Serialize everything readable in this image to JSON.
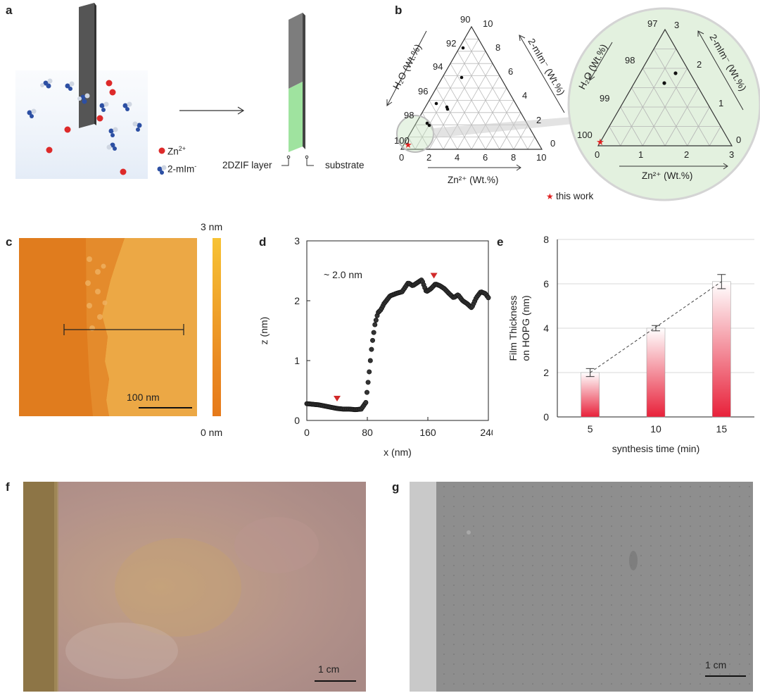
{
  "panels": {
    "a": "a",
    "b": "b",
    "c": "c",
    "d": "d",
    "e": "e",
    "f": "f",
    "g": "g"
  },
  "panel_a": {
    "legend_zn": "Zn",
    "legend_zn_sup": "2+",
    "legend_mim": "2-mIm",
    "legend_mim_sup": "-",
    "layer_label": "2DZIF layer",
    "substrate_label": "substrate",
    "colors": {
      "zn": "#dd2a2a",
      "mim_n": "#2c4fa3",
      "film": "#9fe39f",
      "plate": "#555555"
    }
  },
  "panel_b": {
    "left_axis_ticks": [
      "100",
      "98",
      "96",
      "94",
      "92",
      "90"
    ],
    "right_axis_ticks": [
      "2",
      "4",
      "6",
      "8",
      "10"
    ],
    "bottom_axis_ticks": [
      "0",
      "2",
      "4",
      "6",
      "8",
      "10"
    ],
    "right_corner_tick": "0",
    "left_axis_title": "H₂O (Wt.%)",
    "right_axis_title": "2-mIm⁻ (Wt.%)",
    "bottom_axis_title": "Zn²⁺ (Wt.%)",
    "zoom_left_ticks": [
      "100",
      "99",
      "98",
      "97"
    ],
    "zoom_right_ticks": [
      "1",
      "2",
      "3"
    ],
    "zoom_right_corner": "0",
    "zoom_bottom_ticks": [
      "0",
      "1",
      "2",
      "3"
    ],
    "legend": "this work"
  },
  "panel_c": {
    "colorbar_max": "3 nm",
    "colorbar_min": "0 nm",
    "scale_bar": "100 nm"
  },
  "panel_g_scale": "1 cm",
  "panel_f_scale": "1 cm",
  "chart_data": [
    {
      "type": "line",
      "panel": "d",
      "xlabel": "x (nm)",
      "ylabel": "z (nm)",
      "xlim": [
        0,
        240
      ],
      "ylim": [
        0,
        3
      ],
      "xticks": [
        "0",
        "80",
        "160",
        "240"
      ],
      "yticks": [
        "0",
        "1",
        "2",
        "3"
      ],
      "annotation": "~ 2.0 nm",
      "marker_positions_x": [
        40,
        168
      ],
      "x": [
        0,
        8,
        16,
        24,
        32,
        40,
        48,
        56,
        64,
        72,
        78,
        82,
        86,
        90,
        94,
        98,
        102,
        110,
        118,
        126,
        134,
        140,
        146,
        152,
        158,
        164,
        170,
        176,
        182,
        188,
        194,
        200,
        206,
        212,
        218,
        224,
        230,
        236,
        240
      ],
      "y": [
        0.28,
        0.27,
        0.26,
        0.24,
        0.22,
        0.2,
        0.19,
        0.19,
        0.18,
        0.19,
        0.3,
        0.75,
        1.25,
        1.6,
        1.8,
        1.85,
        1.95,
        2.08,
        2.12,
        2.15,
        2.3,
        2.25,
        2.3,
        2.35,
        2.15,
        2.2,
        2.28,
        2.25,
        2.2,
        2.12,
        2.05,
        2.1,
        2.0,
        1.95,
        1.88,
        2.05,
        2.15,
        2.12,
        2.05
      ]
    },
    {
      "type": "bar",
      "panel": "e",
      "categories": [
        "5",
        "10",
        "15"
      ],
      "values": [
        2.0,
        4.0,
        6.1
      ],
      "errors": [
        0.18,
        0.12,
        0.32
      ],
      "xlabel": "synthesis time (min)",
      "ylabel_line1": "Film Thickness",
      "ylabel_line2": "on HOPG (nm)",
      "ylim": [
        0,
        8
      ],
      "yticks": [
        "0",
        "2",
        "4",
        "6",
        "8"
      ],
      "grid": true,
      "bar_color": "#e8213a",
      "trend_line": "dashed"
    }
  ]
}
